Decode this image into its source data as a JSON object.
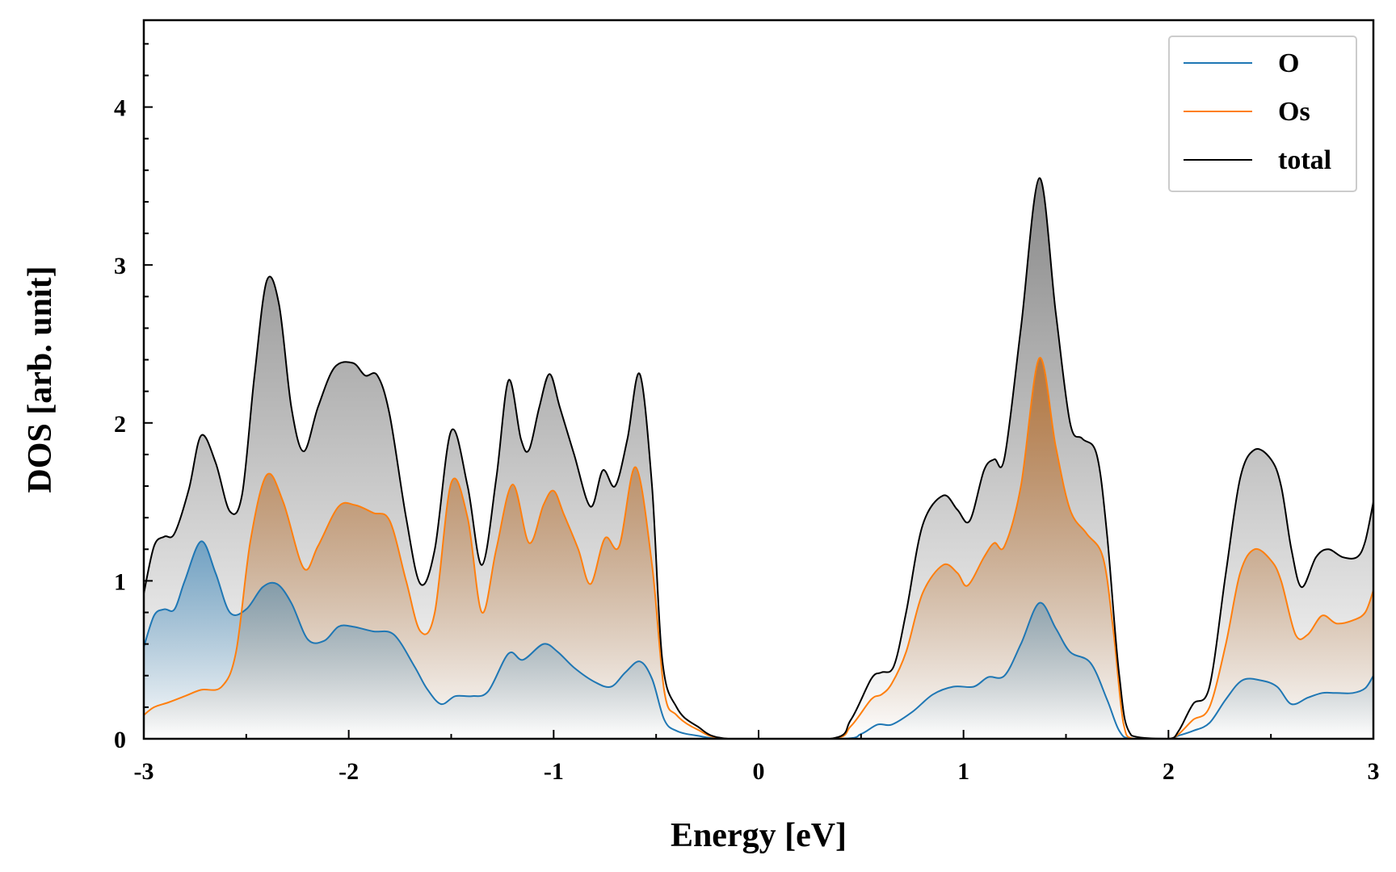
{
  "chart_data": {
    "type": "area",
    "xlabel": "Energy [eV]",
    "ylabel": "DOS [arb. unit]",
    "xlim": [
      -3,
      3
    ],
    "ylim": [
      0,
      4.55
    ],
    "xticks": [
      -3,
      -2,
      -1,
      0,
      1,
      2,
      3
    ],
    "xtick_labels": [
      "-3",
      "-2",
      "-1",
      "0",
      "1",
      "2",
      "3"
    ],
    "yticks": [
      0,
      1,
      2,
      3,
      4
    ],
    "ytick_labels": [
      "0",
      "1",
      "2",
      "3",
      "4"
    ],
    "grid": false,
    "legend": "top-right",
    "fill": "gradient under each curve, fading to white at zero",
    "series": [
      {
        "name": "O",
        "color": "#1f77b4",
        "points": [
          [
            -3.0,
            0.58
          ],
          [
            -2.95,
            0.78
          ],
          [
            -2.9,
            0.82
          ],
          [
            -2.85,
            0.82
          ],
          [
            -2.8,
            1.0
          ],
          [
            -2.72,
            1.25
          ],
          [
            -2.65,
            1.05
          ],
          [
            -2.58,
            0.8
          ],
          [
            -2.5,
            0.82
          ],
          [
            -2.42,
            0.96
          ],
          [
            -2.35,
            0.98
          ],
          [
            -2.28,
            0.86
          ],
          [
            -2.2,
            0.63
          ],
          [
            -2.12,
            0.62
          ],
          [
            -2.05,
            0.71
          ],
          [
            -1.98,
            0.71
          ],
          [
            -1.88,
            0.68
          ],
          [
            -1.78,
            0.66
          ],
          [
            -1.68,
            0.46
          ],
          [
            -1.62,
            0.32
          ],
          [
            -1.55,
            0.22
          ],
          [
            -1.48,
            0.27
          ],
          [
            -1.4,
            0.27
          ],
          [
            -1.32,
            0.3
          ],
          [
            -1.22,
            0.54
          ],
          [
            -1.15,
            0.5
          ],
          [
            -1.05,
            0.6
          ],
          [
            -0.98,
            0.55
          ],
          [
            -0.9,
            0.45
          ],
          [
            -0.8,
            0.36
          ],
          [
            -0.72,
            0.33
          ],
          [
            -0.65,
            0.42
          ],
          [
            -0.58,
            0.49
          ],
          [
            -0.52,
            0.38
          ],
          [
            -0.46,
            0.12
          ],
          [
            -0.4,
            0.05
          ],
          [
            -0.3,
            0.02
          ],
          [
            -0.15,
            0.0
          ],
          [
            0.4,
            0.0
          ],
          [
            0.5,
            0.03
          ],
          [
            0.58,
            0.09
          ],
          [
            0.65,
            0.09
          ],
          [
            0.75,
            0.17
          ],
          [
            0.85,
            0.28
          ],
          [
            0.95,
            0.33
          ],
          [
            1.05,
            0.33
          ],
          [
            1.12,
            0.39
          ],
          [
            1.2,
            0.4
          ],
          [
            1.28,
            0.6
          ],
          [
            1.37,
            0.86
          ],
          [
            1.45,
            0.7
          ],
          [
            1.52,
            0.55
          ],
          [
            1.62,
            0.48
          ],
          [
            1.7,
            0.25
          ],
          [
            1.76,
            0.05
          ],
          [
            1.82,
            0.0
          ],
          [
            2.0,
            0.0
          ],
          [
            2.05,
            0.02
          ],
          [
            2.12,
            0.05
          ],
          [
            2.2,
            0.1
          ],
          [
            2.28,
            0.25
          ],
          [
            2.36,
            0.37
          ],
          [
            2.45,
            0.37
          ],
          [
            2.53,
            0.33
          ],
          [
            2.6,
            0.22
          ],
          [
            2.68,
            0.26
          ],
          [
            2.75,
            0.29
          ],
          [
            2.82,
            0.29
          ],
          [
            2.9,
            0.29
          ],
          [
            2.96,
            0.32
          ],
          [
            3.0,
            0.4
          ]
        ]
      },
      {
        "name": "Os",
        "color": "#ff7f0e",
        "points": [
          [
            -3.0,
            0.15
          ],
          [
            -2.95,
            0.2
          ],
          [
            -2.88,
            0.23
          ],
          [
            -2.8,
            0.27
          ],
          [
            -2.72,
            0.31
          ],
          [
            -2.62,
            0.33
          ],
          [
            -2.55,
            0.55
          ],
          [
            -2.48,
            1.25
          ],
          [
            -2.4,
            1.67
          ],
          [
            -2.32,
            1.5
          ],
          [
            -2.22,
            1.08
          ],
          [
            -2.15,
            1.22
          ],
          [
            -2.05,
            1.47
          ],
          [
            -1.97,
            1.48
          ],
          [
            -1.88,
            1.43
          ],
          [
            -1.8,
            1.38
          ],
          [
            -1.72,
            1.0
          ],
          [
            -1.65,
            0.68
          ],
          [
            -1.58,
            0.8
          ],
          [
            -1.5,
            1.62
          ],
          [
            -1.42,
            1.4
          ],
          [
            -1.35,
            0.8
          ],
          [
            -1.28,
            1.2
          ],
          [
            -1.2,
            1.61
          ],
          [
            -1.12,
            1.24
          ],
          [
            -1.05,
            1.48
          ],
          [
            -1.0,
            1.57
          ],
          [
            -0.95,
            1.42
          ],
          [
            -0.88,
            1.2
          ],
          [
            -0.82,
            0.98
          ],
          [
            -0.75,
            1.27
          ],
          [
            -0.68,
            1.22
          ],
          [
            -0.6,
            1.72
          ],
          [
            -0.52,
            1.1
          ],
          [
            -0.46,
            0.3
          ],
          [
            -0.4,
            0.15
          ],
          [
            -0.3,
            0.06
          ],
          [
            -0.15,
            0.0
          ],
          [
            0.35,
            0.0
          ],
          [
            0.45,
            0.08
          ],
          [
            0.55,
            0.25
          ],
          [
            0.6,
            0.28
          ],
          [
            0.65,
            0.35
          ],
          [
            0.72,
            0.55
          ],
          [
            0.8,
            0.92
          ],
          [
            0.9,
            1.1
          ],
          [
            0.97,
            1.05
          ],
          [
            1.02,
            0.97
          ],
          [
            1.1,
            1.15
          ],
          [
            1.15,
            1.24
          ],
          [
            1.2,
            1.22
          ],
          [
            1.28,
            1.6
          ],
          [
            1.37,
            2.41
          ],
          [
            1.45,
            1.85
          ],
          [
            1.52,
            1.45
          ],
          [
            1.6,
            1.3
          ],
          [
            1.68,
            1.15
          ],
          [
            1.73,
            0.7
          ],
          [
            1.78,
            0.1
          ],
          [
            1.83,
            0.0
          ],
          [
            2.0,
            0.0
          ],
          [
            2.05,
            0.03
          ],
          [
            2.12,
            0.12
          ],
          [
            2.2,
            0.2
          ],
          [
            2.28,
            0.6
          ],
          [
            2.35,
            1.05
          ],
          [
            2.42,
            1.2
          ],
          [
            2.5,
            1.13
          ],
          [
            2.55,
            1.0
          ],
          [
            2.62,
            0.66
          ],
          [
            2.68,
            0.66
          ],
          [
            2.75,
            0.78
          ],
          [
            2.82,
            0.73
          ],
          [
            2.9,
            0.75
          ],
          [
            2.96,
            0.8
          ],
          [
            3.0,
            0.94
          ]
        ]
      },
      {
        "name": "total",
        "color": "#000000",
        "points": [
          [
            -3.0,
            0.92
          ],
          [
            -2.95,
            1.22
          ],
          [
            -2.9,
            1.28
          ],
          [
            -2.85,
            1.3
          ],
          [
            -2.78,
            1.58
          ],
          [
            -2.72,
            1.92
          ],
          [
            -2.65,
            1.75
          ],
          [
            -2.58,
            1.44
          ],
          [
            -2.52,
            1.55
          ],
          [
            -2.46,
            2.3
          ],
          [
            -2.4,
            2.9
          ],
          [
            -2.34,
            2.75
          ],
          [
            -2.28,
            2.1
          ],
          [
            -2.22,
            1.82
          ],
          [
            -2.15,
            2.1
          ],
          [
            -2.07,
            2.35
          ],
          [
            -1.98,
            2.38
          ],
          [
            -1.92,
            2.3
          ],
          [
            -1.86,
            2.3
          ],
          [
            -1.8,
            2.05
          ],
          [
            -1.72,
            1.4
          ],
          [
            -1.65,
            0.98
          ],
          [
            -1.58,
            1.2
          ],
          [
            -1.5,
            1.95
          ],
          [
            -1.42,
            1.6
          ],
          [
            -1.35,
            1.1
          ],
          [
            -1.28,
            1.65
          ],
          [
            -1.22,
            2.27
          ],
          [
            -1.16,
            1.9
          ],
          [
            -1.12,
            1.83
          ],
          [
            -1.07,
            2.1
          ],
          [
            -1.02,
            2.31
          ],
          [
            -0.97,
            2.1
          ],
          [
            -0.9,
            1.8
          ],
          [
            -0.82,
            1.47
          ],
          [
            -0.76,
            1.7
          ],
          [
            -0.7,
            1.6
          ],
          [
            -0.64,
            1.9
          ],
          [
            -0.58,
            2.31
          ],
          [
            -0.52,
            1.6
          ],
          [
            -0.47,
            0.5
          ],
          [
            -0.4,
            0.2
          ],
          [
            -0.3,
            0.08
          ],
          [
            -0.15,
            0.0
          ],
          [
            0.35,
            0.0
          ],
          [
            0.45,
            0.12
          ],
          [
            0.55,
            0.38
          ],
          [
            0.6,
            0.42
          ],
          [
            0.66,
            0.46
          ],
          [
            0.72,
            0.8
          ],
          [
            0.8,
            1.35
          ],
          [
            0.9,
            1.54
          ],
          [
            0.97,
            1.45
          ],
          [
            1.03,
            1.38
          ],
          [
            1.1,
            1.7
          ],
          [
            1.15,
            1.77
          ],
          [
            1.2,
            1.78
          ],
          [
            1.28,
            2.6
          ],
          [
            1.37,
            3.55
          ],
          [
            1.45,
            2.7
          ],
          [
            1.52,
            2.0
          ],
          [
            1.58,
            1.9
          ],
          [
            1.65,
            1.8
          ],
          [
            1.7,
            1.3
          ],
          [
            1.76,
            0.4
          ],
          [
            1.82,
            0.02
          ],
          [
            2.0,
            0.0
          ],
          [
            2.05,
            0.05
          ],
          [
            2.12,
            0.22
          ],
          [
            2.2,
            0.33
          ],
          [
            2.28,
            1.05
          ],
          [
            2.35,
            1.65
          ],
          [
            2.42,
            1.83
          ],
          [
            2.5,
            1.77
          ],
          [
            2.55,
            1.6
          ],
          [
            2.6,
            1.2
          ],
          [
            2.65,
            0.96
          ],
          [
            2.72,
            1.15
          ],
          [
            2.78,
            1.2
          ],
          [
            2.85,
            1.15
          ],
          [
            2.92,
            1.15
          ],
          [
            2.96,
            1.25
          ],
          [
            3.0,
            1.5
          ]
        ]
      }
    ]
  }
}
